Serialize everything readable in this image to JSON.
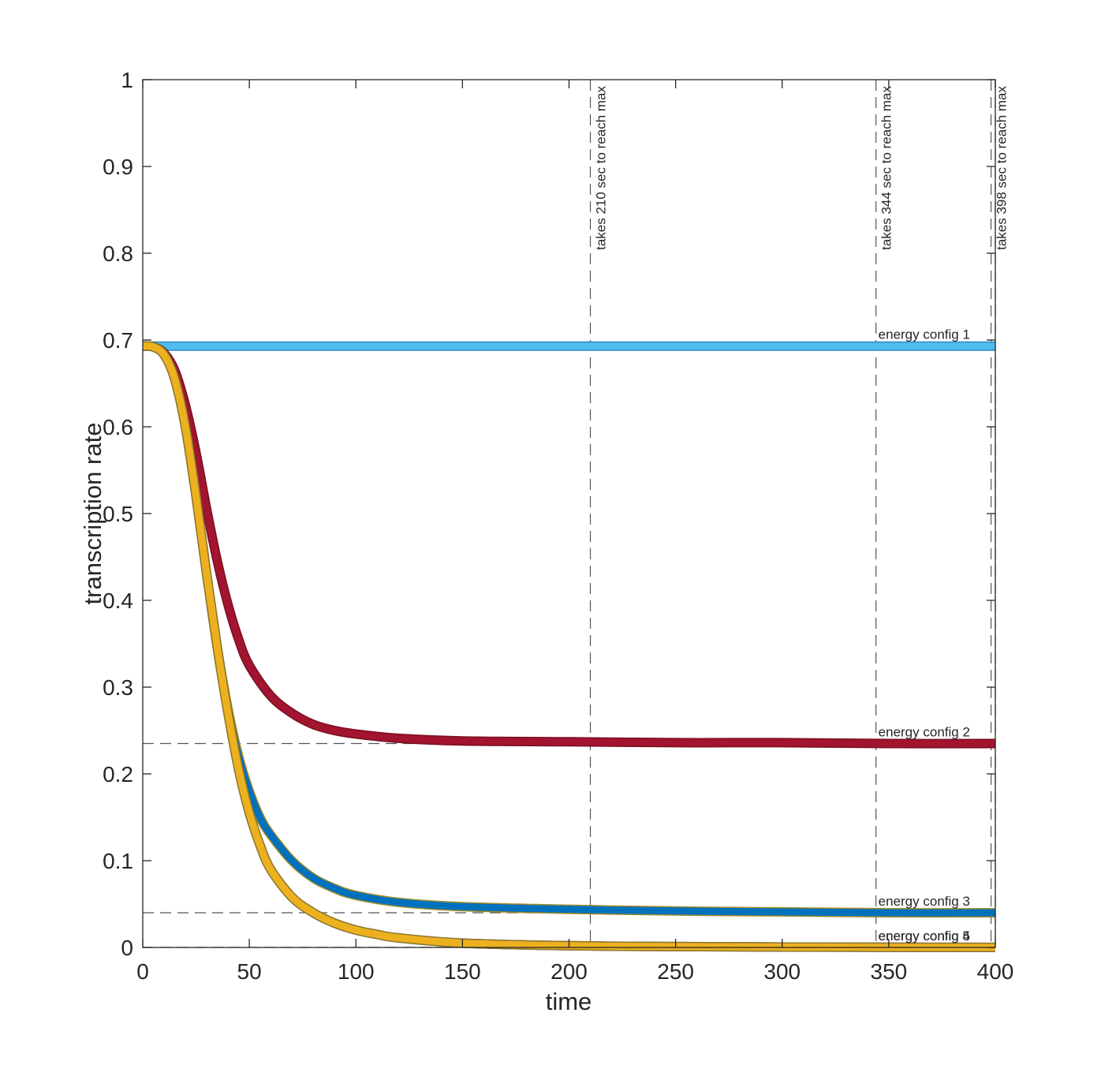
{
  "chart_data": {
    "type": "line",
    "title": "",
    "xlabel": "time",
    "ylabel": "transcription rate",
    "xlim": [
      0,
      400
    ],
    "ylim": [
      0,
      1
    ],
    "xticks": [
      0,
      50,
      100,
      150,
      200,
      250,
      300,
      350,
      400
    ],
    "yticks": [
      0,
      0.1,
      0.2,
      0.3,
      0.4,
      0.5,
      0.6,
      0.7,
      0.8,
      0.9,
      1
    ],
    "xtick_labels": [
      "0",
      "50",
      "100",
      "150",
      "200",
      "250",
      "300",
      "350",
      "400"
    ],
    "ytick_labels": [
      "0",
      "0.1",
      "0.2",
      "0.3",
      "0.4",
      "0.5",
      "0.6",
      "0.7",
      "0.8",
      "0.9",
      "1"
    ],
    "grid": false,
    "series": [
      {
        "name": "energy config 1",
        "color": "#4DBEEE",
        "outline": "#2E8BC0",
        "x": [
          0,
          50,
          100,
          200,
          300,
          400
        ],
        "y": [
          0.693,
          0.693,
          0.693,
          0.693,
          0.693,
          0.693
        ]
      },
      {
        "name": "energy config 2",
        "color": "#A2142F",
        "outline": "#7A0F22",
        "x": [
          0,
          5,
          10,
          15,
          20,
          25,
          30,
          35,
          40,
          45,
          50,
          60,
          70,
          80,
          90,
          100,
          120,
          150,
          200,
          250,
          300,
          350,
          400
        ],
        "y": [
          0.693,
          0.692,
          0.685,
          0.665,
          0.625,
          0.57,
          0.505,
          0.445,
          0.395,
          0.355,
          0.325,
          0.29,
          0.27,
          0.257,
          0.25,
          0.246,
          0.241,
          0.238,
          0.237,
          0.236,
          0.236,
          0.235,
          0.235
        ]
      },
      {
        "name": "energy config 3",
        "color": "#0072BD",
        "outline": "#A08A2A",
        "x": [
          0,
          5,
          10,
          15,
          20,
          25,
          30,
          35,
          40,
          45,
          50,
          55,
          60,
          70,
          80,
          90,
          100,
          120,
          150,
          200,
          250,
          300,
          350,
          400
        ],
        "y": [
          0.693,
          0.692,
          0.683,
          0.655,
          0.6,
          0.52,
          0.43,
          0.345,
          0.275,
          0.22,
          0.18,
          0.15,
          0.13,
          0.1,
          0.08,
          0.068,
          0.06,
          0.052,
          0.047,
          0.044,
          0.042,
          0.041,
          0.04,
          0.04
        ]
      },
      {
        "name": "energy config 4",
        "color": "#7E2F8E",
        "outline": "#5A1F66",
        "x": [
          0,
          5,
          10,
          15,
          20,
          25,
          30,
          35,
          40,
          45,
          50,
          55,
          60,
          70,
          80,
          90,
          100,
          110,
          120,
          150,
          200,
          250,
          300,
          350,
          400
        ],
        "y": [
          0.693,
          0.692,
          0.683,
          0.655,
          0.6,
          0.52,
          0.43,
          0.345,
          0.27,
          0.205,
          0.155,
          0.118,
          0.09,
          0.058,
          0.04,
          0.028,
          0.02,
          0.015,
          0.011,
          0.005,
          0.002,
          0.001,
          0.0005,
          0.0002,
          0.0001
        ]
      },
      {
        "name": "energy config 5",
        "color": "#EDB120",
        "outline": "#8E7A2A",
        "x": [
          0,
          5,
          10,
          15,
          20,
          25,
          30,
          35,
          40,
          45,
          50,
          55,
          60,
          70,
          80,
          90,
          100,
          110,
          120,
          150,
          200,
          250,
          300,
          350,
          400
        ],
        "y": [
          0.693,
          0.692,
          0.683,
          0.655,
          0.6,
          0.52,
          0.43,
          0.345,
          0.27,
          0.205,
          0.155,
          0.118,
          0.09,
          0.058,
          0.04,
          0.028,
          0.02,
          0.015,
          0.011,
          0.005,
          0.002,
          0.001,
          0.0005,
          0.0002,
          0.0001
        ]
      }
    ],
    "reference_lines": {
      "horizontal": [
        0.693,
        0.235,
        0.04,
        0.0001
      ],
      "vertical": [
        210,
        344,
        398,
        400
      ]
    },
    "annotations": {
      "time_labels": [
        {
          "x": 210,
          "text": "takes 210 sec to reach max"
        },
        {
          "x": 344,
          "text": "takes 344 sec to reach max"
        },
        {
          "x": 398,
          "text": "takes 398 sec to reach max"
        }
      ],
      "series_labels": [
        {
          "y": 0.693,
          "text": "energy config 1"
        },
        {
          "y": 0.235,
          "text": "energy config 2"
        },
        {
          "y": 0.04,
          "text": "energy config 3"
        },
        {
          "y": 0.0001,
          "text": "energy config 4"
        },
        {
          "y": 0.0001,
          "text": "energy config 5"
        }
      ]
    }
  }
}
